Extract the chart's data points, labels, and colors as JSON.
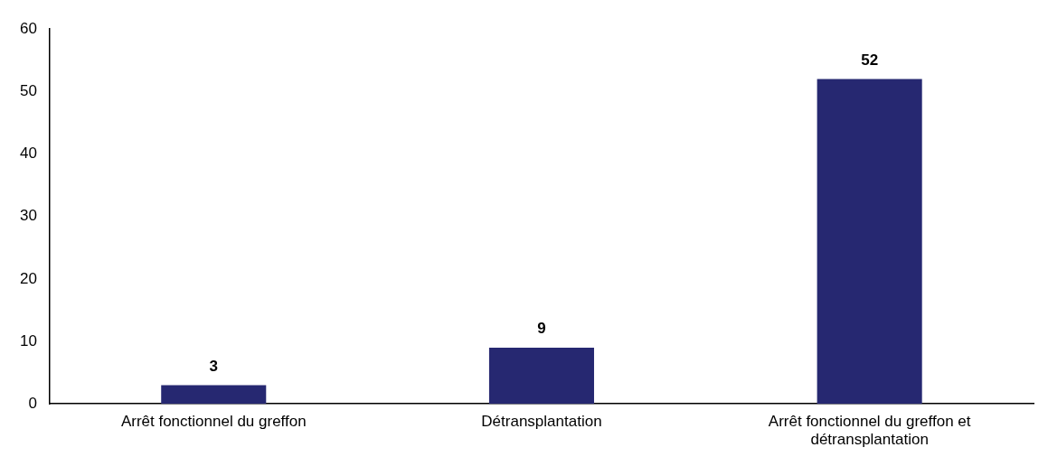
{
  "chart_data": {
    "type": "bar",
    "categories": [
      "Arrêt fonctionnel du greffon",
      "Détransplantation",
      "Arrêt fonctionnel du greffon et détransplantation"
    ],
    "values": [
      3,
      9,
      52
    ],
    "color": "#262871",
    "ylim": [
      0,
      60
    ],
    "yticks": [
      0,
      10,
      20,
      30,
      40,
      50,
      60
    ],
    "grid": false,
    "legend": false,
    "data_labels": true
  }
}
